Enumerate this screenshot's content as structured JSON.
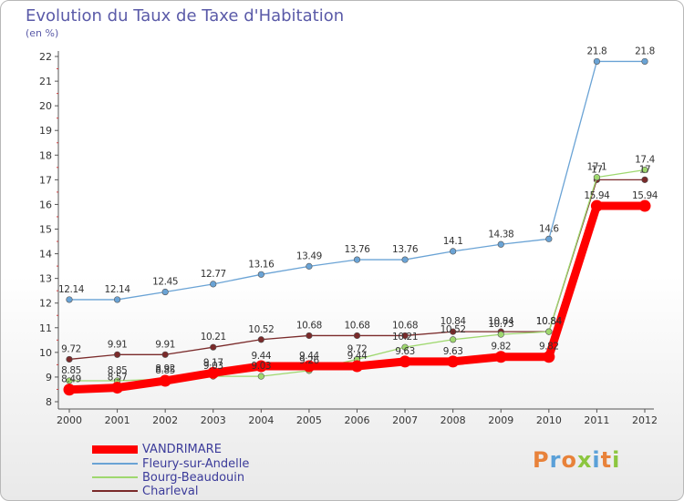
{
  "title": "Evolution du Taux de Taxe d'Habitation",
  "unit_label": "(en %)",
  "logo_text": "Proxiti",
  "logo_colors": [
    "#e8823a",
    "#5aa0d8",
    "#e8823a",
    "#8cc63f",
    "#5aa0d8",
    "#e8823a",
    "#8cc63f"
  ],
  "chart_data": {
    "type": "line",
    "title": "Evolution du Taux de Taxe d'Habitation",
    "ylabel": "(en %)",
    "xlabel": "",
    "ylim": [
      8,
      22
    ],
    "yticks": [
      8,
      9,
      10,
      11,
      12,
      13,
      14,
      15,
      16,
      17,
      18,
      19,
      20,
      21,
      22
    ],
    "categories": [
      "2000",
      "2001",
      "2002",
      "2003",
      "2004",
      "2005",
      "2006",
      "2007",
      "2008",
      "2009",
      "2010",
      "2011",
      "2012"
    ],
    "grid": false,
    "legend_position": "bottom-left",
    "series": [
      {
        "name": "VANDRIMARE",
        "color": "#ff0000",
        "values": [
          8.49,
          8.57,
          8.85,
          9.17,
          9.44,
          9.44,
          9.44,
          9.63,
          9.63,
          9.82,
          9.82,
          15.94,
          15.94
        ],
        "labels": [
          "8.49",
          "8.57",
          "8.85",
          "9.17",
          "9.44",
          "9.44",
          "9.44",
          "9.63",
          "9.63",
          "9.82",
          "9.82",
          "15.94",
          "15.94"
        ]
      },
      {
        "name": "Fleury-sur-Andelle",
        "color": "#6aa3d5",
        "values": [
          12.14,
          12.14,
          12.45,
          12.77,
          13.16,
          13.49,
          13.76,
          13.76,
          14.1,
          14.38,
          14.6,
          21.8,
          21.8
        ],
        "labels": [
          "12.14",
          "12.14",
          "12.45",
          "12.77",
          "13.16",
          "13.49",
          "13.76",
          "13.76",
          "14.1",
          "14.38",
          "14.6",
          "21.8",
          "21.8"
        ]
      },
      {
        "name": "Bourg-Beaudouin",
        "color": "#9fd86f",
        "values": [
          8.85,
          8.85,
          8.92,
          9.03,
          9.03,
          9.26,
          9.72,
          10.21,
          10.52,
          10.73,
          10.84,
          17.1,
          17.4
        ],
        "labels": [
          "8.85",
          "8.85",
          "8.92",
          "9.03",
          "9.03",
          "9.26",
          "9.72",
          "10.21",
          "10.52",
          "10.73",
          "10.84",
          "17.1",
          "17.4"
        ]
      },
      {
        "name": "Charleval",
        "color": "#7a2a2a",
        "values": [
          9.72,
          9.91,
          9.91,
          10.21,
          10.52,
          10.68,
          10.68,
          10.68,
          10.84,
          10.84,
          10.84,
          17.0,
          17.0
        ],
        "labels": [
          "9.72",
          "9.91",
          "9.91",
          "10.21",
          "10.52",
          "10.68",
          "10.68",
          "10.68",
          "10.84",
          "10.84",
          "10.84",
          "17",
          "17"
        ]
      }
    ]
  }
}
